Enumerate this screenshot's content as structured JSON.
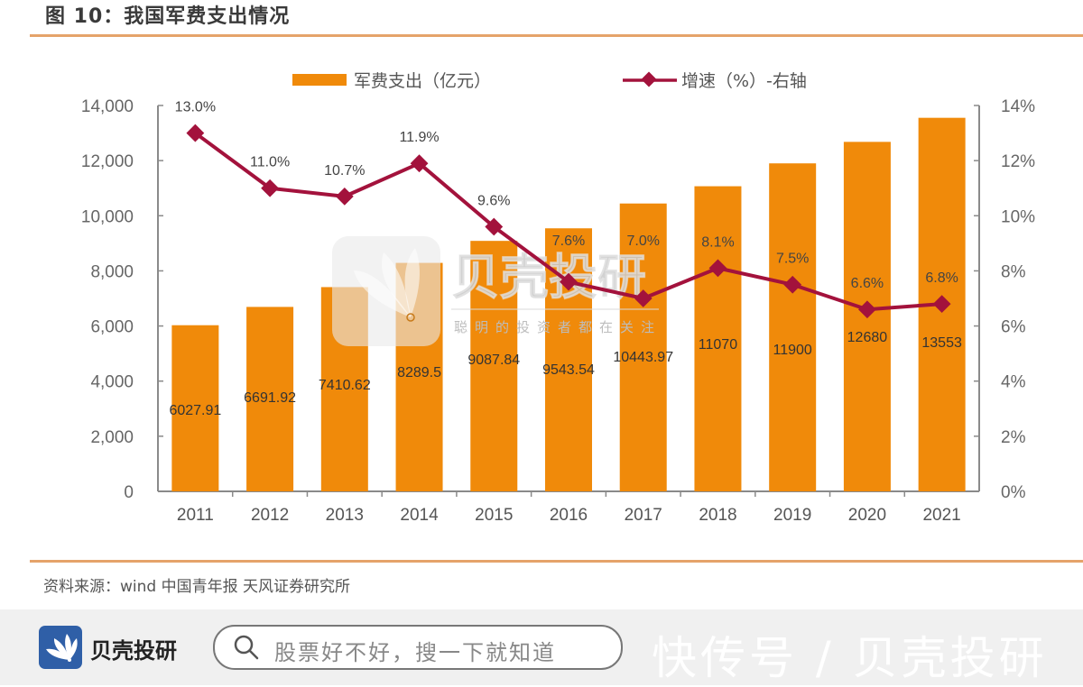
{
  "header": {
    "title": "图 10：我国军费支出情况"
  },
  "source_note": "资料来源：wind  中国青年报  天风证券研究所",
  "watermark": {
    "brand": "贝壳投研",
    "slogan": "聪明的投资者都在关注"
  },
  "footer": {
    "brand_name": "贝壳投研",
    "search_placeholder": "股票好不好，搜一下就知道",
    "channel_label": "快传号 / 贝壳投研",
    "logo_icon": "shell-fan-icon",
    "search_icon": "search-icon"
  },
  "colors": {
    "bar": "#f08a0a",
    "line": "#a3123c",
    "axis": "#8a8a8a",
    "rule": "#e5a36a",
    "logo_bg": "#2f5fa7"
  },
  "chart_data": {
    "type": "bar+line",
    "title": "我国军费支出情况",
    "categories": [
      "2011",
      "2012",
      "2013",
      "2014",
      "2015",
      "2016",
      "2017",
      "2018",
      "2019",
      "2020",
      "2021"
    ],
    "series": [
      {
        "name": "军费支出（亿元）",
        "type": "bar",
        "axis": "left",
        "values": [
          6027.91,
          6691.92,
          7410.62,
          8289.5,
          9087.84,
          9543.54,
          10443.97,
          11070,
          11900,
          12680,
          13553
        ],
        "labels": [
          "6027.91",
          "6691.92",
          "7410.62",
          "8289.5",
          "9087.84",
          "9543.54",
          "10443.97",
          "11070",
          "11900",
          "12680",
          "13553"
        ]
      },
      {
        "name": "增速（%）-右轴",
        "type": "line",
        "axis": "right",
        "values": [
          13.0,
          11.0,
          10.7,
          11.9,
          9.6,
          7.6,
          7.0,
          8.1,
          7.5,
          6.6,
          6.8
        ],
        "labels": [
          "13.0%",
          "11.0%",
          "10.7%",
          "11.9%",
          "9.6%",
          "7.6%",
          "7.0%",
          "8.1%",
          "7.5%",
          "6.6%",
          "6.8%"
        ]
      }
    ],
    "left_axis": {
      "ylim": [
        0,
        14000
      ],
      "ticks": [
        "0",
        "2,000",
        "4,000",
        "6,000",
        "8,000",
        "10,000",
        "12,000",
        "14,000"
      ],
      "tick_values": [
        0,
        2000,
        4000,
        6000,
        8000,
        10000,
        12000,
        14000
      ]
    },
    "right_axis": {
      "ylim": [
        0,
        14
      ],
      "ticks": [
        "0%",
        "2%",
        "4%",
        "6%",
        "8%",
        "10%",
        "12%",
        "14%"
      ],
      "tick_values": [
        0,
        2,
        4,
        6,
        8,
        10,
        12,
        14
      ]
    },
    "legend": {
      "position": "top-center",
      "items": [
        "军费支出（亿元）",
        "增速（%）-右轴"
      ]
    },
    "grid": false
  }
}
